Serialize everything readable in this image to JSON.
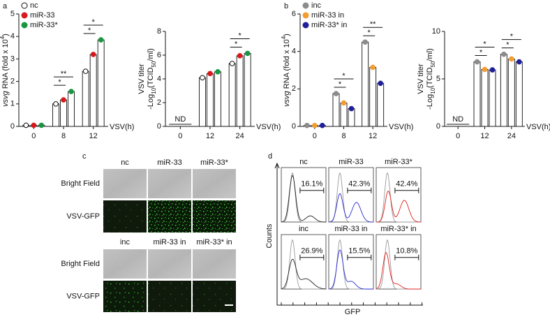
{
  "chart_data": [
    {
      "type": "bar",
      "panel": "a",
      "ylabel": [
        [
          {
            "text": "vsvg",
            "style": "italic"
          },
          {
            "text": " RNA (fold x 10"
          },
          {
            "text": "4",
            "style": "sup"
          },
          {
            "text": ")"
          }
        ]
      ],
      "xlabel": "VSV(h)",
      "categories": [
        "0",
        "8",
        "12"
      ],
      "series": [
        {
          "name": "nc",
          "color": "#ffffff",
          "values": [
            0.05,
            1.0,
            2.45
          ]
        },
        {
          "name": "miR-33",
          "color": "#d7191c",
          "values": [
            0.05,
            1.18,
            3.2
          ]
        },
        {
          "name": "miR-33*",
          "color": "#1a9641",
          "values": [
            0.05,
            1.55,
            3.85
          ]
        }
      ],
      "ylim": [
        0,
        5
      ],
      "yticks": [
        0,
        1,
        2,
        3,
        4,
        5
      ],
      "legend": "upper left",
      "significance": [
        {
          "category": 1,
          "from": 0,
          "to": 1,
          "text": "*"
        },
        {
          "category": 1,
          "from": 0,
          "to": 2,
          "text": "**"
        },
        {
          "category": 2,
          "from": 0,
          "to": 1,
          "text": "*"
        },
        {
          "category": 2,
          "from": 0,
          "to": 2,
          "text": "*"
        }
      ]
    },
    {
      "type": "bar",
      "ylabel": [
        [
          {
            "text": "VSV titer"
          }
        ],
        [
          {
            "text": "-Log"
          },
          {
            "text": "10",
            "style": "sub"
          },
          {
            "text": "(TCID"
          },
          {
            "text": "50",
            "style": "sub"
          },
          {
            "text": "/ml)"
          }
        ]
      ],
      "xlabel": "VSV(h)",
      "categories": [
        "0",
        "12",
        "24"
      ],
      "series": [
        {
          "color": "#ffffff",
          "values": [
            null,
            4.1,
            5.3
          ]
        },
        {
          "color": "#d7191c",
          "values": [
            null,
            4.45,
            5.95
          ]
        },
        {
          "color": "#1a9641",
          "values": [
            null,
            4.6,
            6.15
          ]
        }
      ],
      "ylim": [
        0,
        8
      ],
      "yticks": [
        0,
        2,
        4,
        6,
        8
      ],
      "annotations": [
        {
          "text": "ND",
          "category": 0
        }
      ],
      "significance": [
        {
          "category": 2,
          "from": 0,
          "to": 1,
          "text": "*"
        },
        {
          "category": 2,
          "from": 0,
          "to": 2,
          "text": "*"
        }
      ]
    },
    {
      "type": "bar",
      "panel": "b",
      "ylabel": [
        [
          {
            "text": "vsvg",
            "style": "italic"
          },
          {
            "text": " RNA (fold x 10"
          },
          {
            "text": "4",
            "style": "sup"
          },
          {
            "text": ")"
          }
        ]
      ],
      "xlabel": "VSV(h)",
      "categories": [
        "0",
        "8",
        "12"
      ],
      "series": [
        {
          "name": "inc",
          "color": "#8c8c8c",
          "values": [
            0.05,
            1.75,
            4.5
          ]
        },
        {
          "name": "miR-33 in",
          "color": "#f39c32",
          "values": [
            0.05,
            1.25,
            3.15
          ]
        },
        {
          "name": "miR-33* in",
          "color": "#1f1f99",
          "values": [
            0.05,
            0.95,
            2.3
          ]
        }
      ],
      "ylim": [
        0,
        6
      ],
      "yticks": [
        0,
        2,
        4,
        6
      ],
      "legend": "upper left",
      "significance": [
        {
          "category": 1,
          "from": 0,
          "to": 1,
          "text": "*"
        },
        {
          "category": 1,
          "from": 0,
          "to": 2,
          "text": "*"
        },
        {
          "category": 2,
          "from": 0,
          "to": 1,
          "text": "*"
        },
        {
          "category": 2,
          "from": 0,
          "to": 2,
          "text": "**"
        }
      ]
    },
    {
      "type": "bar",
      "ylabel": [
        [
          {
            "text": "VSV titer"
          }
        ],
        [
          {
            "text": "-Log"
          },
          {
            "text": "10",
            "style": "sub"
          },
          {
            "text": "(TCID"
          },
          {
            "text": "50",
            "style": "sub"
          },
          {
            "text": "/ml)"
          }
        ]
      ],
      "xlabel": "VSV(h)",
      "categories": [
        "0",
        "12",
        "24"
      ],
      "series": [
        {
          "color": "#8c8c8c",
          "values": [
            null,
            6.8,
            7.6
          ]
        },
        {
          "color": "#f39c32",
          "values": [
            null,
            6.0,
            7.1
          ]
        },
        {
          "color": "#1f1f99",
          "values": [
            null,
            5.95,
            6.8
          ]
        }
      ],
      "ylim": [
        0,
        10
      ],
      "yticks": [
        0,
        5,
        10
      ],
      "annotations": [
        {
          "text": "ND",
          "category": 0
        }
      ],
      "significance": [
        {
          "category": 1,
          "from": 0,
          "to": 1,
          "text": "*"
        },
        {
          "category": 1,
          "from": 0,
          "to": 2,
          "text": "*"
        },
        {
          "category": 2,
          "from": 0,
          "to": 1,
          "text": "*"
        },
        {
          "category": 2,
          "from": 0,
          "to": 2,
          "text": "*"
        }
      ]
    }
  ],
  "panel_c": {
    "label": "c",
    "blocks": [
      {
        "columns": [
          "nc",
          "miR-33",
          "miR-33*"
        ],
        "rows": [
          "Bright Field",
          "VSV-GFP"
        ]
      },
      {
        "columns": [
          "inc",
          "miR-33 in",
          "miR-33* in"
        ],
        "rows": [
          "Bright Field",
          "VSV-GFP"
        ]
      }
    ]
  },
  "panel_d": {
    "label": "d",
    "ylabel": "Counts",
    "xlabel": "GFP",
    "rows": [
      [
        {
          "title": "nc",
          "percent": "16.1%",
          "color": "#222222"
        },
        {
          "title": "miR-33",
          "percent": "42.3%",
          "color": "#2a2ad0"
        },
        {
          "title": "miR-33*",
          "percent": "42.4%",
          "color": "#e02020"
        }
      ],
      [
        {
          "title": "inc",
          "percent": "26.9%",
          "color": "#222222"
        },
        {
          "title": "miR-33 in",
          "percent": "15.5%",
          "color": "#2a2ad0"
        },
        {
          "title": "miR-33* in",
          "percent": "10.8%",
          "color": "#e02020"
        }
      ]
    ]
  }
}
